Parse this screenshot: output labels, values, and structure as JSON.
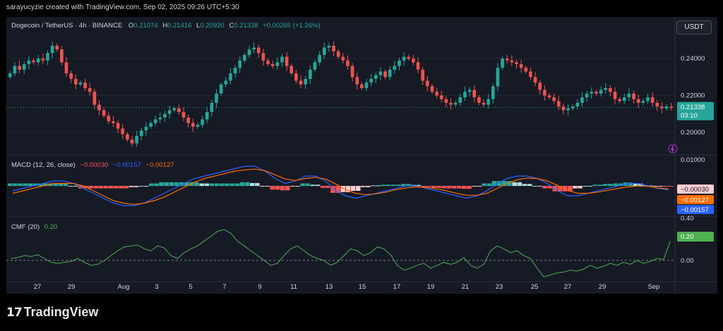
{
  "header": {
    "attribution": "sarayucyzie created with TradingView.com, Sep 02, 2025 09:26 UTC+5:30"
  },
  "legend": {
    "symbol": "Dogecoin / TetherUS · 4h · BINANCE",
    "o_label": "O",
    "o_value": "0.21074",
    "h_label": "H",
    "h_value": "0.21416",
    "l_label": "L",
    "l_value": "0.20920",
    "c_label": "C",
    "c_value": "0.21338",
    "change": "+0.00265 (+1.26%)"
  },
  "currency_button": "USDT",
  "price_axis": {
    "ticks": [
      "0.24000",
      "0.22000",
      "0.20000"
    ],
    "last_price": "0.21338",
    "countdown": "03:10"
  },
  "macd": {
    "label": "MACD (12, 26, close)",
    "v1": "−0.00030",
    "v2": "−0.00157",
    "v3": "−0.00127",
    "axis_top": "0.01000",
    "tag_hist": "−0.00030",
    "tag_signal": "−0.00127",
    "tag_macd": "−0.00157"
  },
  "cmf": {
    "label": "CMF (20)",
    "value": "0.20",
    "axis_top": "0.40",
    "axis_zero": "0.00",
    "tag": "0.20"
  },
  "time_axis": [
    "27",
    "29",
    "Aug",
    "3",
    "5",
    "7",
    "9",
    "11",
    "13",
    "15",
    "17",
    "19",
    "21",
    "23",
    "25",
    "27",
    "29",
    "Sep"
  ],
  "brand": "TradingView",
  "colors": {
    "up": "#26a69a",
    "down": "#ef5350",
    "macd_line": "#2962ff",
    "signal_line": "#ff6d00",
    "cmf_line": "#4caf50",
    "bg": "#161a25"
  },
  "chart_data": [
    {
      "type": "candlestick",
      "title": "Dogecoin / TetherUS · 4h · BINANCE",
      "x_ticks": [
        "27",
        "29",
        "Aug",
        "3",
        "5",
        "7",
        "9",
        "11",
        "13",
        "15",
        "17",
        "19",
        "21",
        "23",
        "25",
        "27",
        "29",
        "Sep"
      ],
      "ylim": [
        0.19,
        0.255
      ],
      "y_ticks": [
        0.24,
        0.22,
        0.2
      ],
      "close_path": [
        0.232,
        0.236,
        0.234,
        0.237,
        0.239,
        0.238,
        0.24,
        0.239,
        0.243,
        0.247,
        0.245,
        0.238,
        0.232,
        0.229,
        0.226,
        0.227,
        0.224,
        0.222,
        0.215,
        0.212,
        0.209,
        0.206,
        0.205,
        0.202,
        0.199,
        0.196,
        0.194,
        0.198,
        0.201,
        0.203,
        0.205,
        0.207,
        0.208,
        0.21,
        0.212,
        0.213,
        0.211,
        0.208,
        0.205,
        0.203,
        0.204,
        0.207,
        0.211,
        0.216,
        0.221,
        0.226,
        0.228,
        0.232,
        0.235,
        0.239,
        0.242,
        0.245,
        0.246,
        0.243,
        0.239,
        0.237,
        0.236,
        0.238,
        0.241,
        0.236,
        0.232,
        0.228,
        0.226,
        0.229,
        0.234,
        0.238,
        0.242,
        0.246,
        0.247,
        0.244,
        0.241,
        0.239,
        0.236,
        0.23,
        0.226,
        0.224,
        0.227,
        0.229,
        0.231,
        0.233,
        0.23,
        0.234,
        0.236,
        0.239,
        0.241,
        0.24,
        0.238,
        0.234,
        0.228,
        0.225,
        0.222,
        0.22,
        0.218,
        0.216,
        0.215,
        0.216,
        0.219,
        0.222,
        0.223,
        0.219,
        0.216,
        0.215,
        0.218,
        0.225,
        0.235,
        0.24,
        0.239,
        0.238,
        0.237,
        0.235,
        0.233,
        0.23,
        0.227,
        0.223,
        0.22,
        0.219,
        0.217,
        0.214,
        0.212,
        0.213,
        0.214,
        0.216,
        0.219,
        0.221,
        0.222,
        0.221,
        0.223,
        0.224,
        0.222,
        0.218,
        0.217,
        0.219,
        0.221,
        0.218,
        0.216,
        0.217,
        0.219,
        0.216,
        0.214,
        0.213,
        0.214,
        0.2134
      ]
    },
    {
      "type": "line",
      "title": "MACD (12, 26, close)",
      "series": [
        {
          "name": "MACD",
          "path": [
            -0.002,
            -0.001,
            0.0,
            0.001,
            0.002,
            0.002,
            0.001,
            -0.001,
            -0.003,
            -0.005,
            -0.007,
            -0.008,
            -0.008,
            -0.007,
            -0.005,
            -0.003,
            -0.001,
            0.001,
            0.003,
            0.004,
            0.005,
            0.006,
            0.007,
            0.008,
            0.008,
            0.006,
            0.003,
            0.001,
            0.002,
            0.004,
            0.004,
            0.002,
            -0.002,
            -0.004,
            -0.005,
            -0.004,
            -0.003,
            -0.002,
            -0.001,
            0.0,
            0.0,
            -0.001,
            -0.002,
            -0.003,
            -0.004,
            -0.005,
            -0.004,
            -0.002,
            0.001,
            0.003,
            0.004,
            0.004,
            0.003,
            0.001,
            -0.002,
            -0.004,
            -0.004,
            -0.003,
            -0.002,
            -0.001,
            0.0,
            0.001,
            0.001,
            0.0,
            -0.001,
            -0.00157
          ]
        },
        {
          "name": "Signal",
          "path": [
            -0.003,
            -0.002,
            -0.001,
            0.0,
            0.001,
            0.001,
            0.001,
            0.0,
            -0.002,
            -0.004,
            -0.006,
            -0.007,
            -0.0075,
            -0.007,
            -0.006,
            -0.0045,
            -0.0025,
            -0.0005,
            0.0015,
            0.003,
            0.004,
            0.005,
            0.006,
            0.0065,
            0.0068,
            0.0062,
            0.0045,
            0.0028,
            0.0022,
            0.003,
            0.0035,
            0.0028,
            0.0008,
            -0.0015,
            -0.003,
            -0.0035,
            -0.0032,
            -0.0025,
            -0.0015,
            -0.0008,
            -0.0004,
            -0.0006,
            -0.0012,
            -0.002,
            -0.003,
            -0.0038,
            -0.0038,
            -0.003,
            -0.001,
            0.001,
            0.0025,
            0.0032,
            0.003,
            0.002,
            0.0002,
            -0.0018,
            -0.003,
            -0.003,
            -0.0025,
            -0.0018,
            -0.001,
            -0.0004,
            0.0,
            -0.0002,
            -0.0008,
            -0.00127
          ]
        }
      ],
      "ylim": [
        -0.012,
        0.012
      ],
      "y_ticks": [
        0.01
      ]
    },
    {
      "type": "line",
      "title": "CMF (20)",
      "series": [
        {
          "name": "CMF",
          "path": [
            0.02,
            0.03,
            0.05,
            0.04,
            0.06,
            0.02,
            -0.02,
            -0.03,
            -0.02,
            -0.01,
            0.02,
            -0.02,
            -0.05,
            -0.04,
            0.0,
            0.05,
            0.1,
            0.14,
            0.15,
            0.16,
            0.12,
            0.1,
            0.15,
            0.13,
            0.05,
            0.02,
            0.08,
            0.12,
            0.15,
            0.2,
            0.25,
            0.3,
            0.32,
            0.28,
            0.2,
            0.15,
            0.1,
            0.05,
            0.0,
            -0.05,
            -0.03,
            0.05,
            0.12,
            0.15,
            0.1,
            0.05,
            0.02,
            0.0,
            -0.05,
            -0.02,
            0.05,
            0.12,
            0.1,
            0.05,
            0.08,
            0.14,
            0.12,
            0.06,
            -0.05,
            -0.1,
            -0.08,
            -0.05,
            -0.03,
            -0.08,
            -0.05,
            -0.02,
            -0.04,
            -0.02,
            0.03,
            -0.05,
            -0.08,
            -0.04,
            0.1,
            0.15,
            0.12,
            0.08,
            0.1,
            0.05,
            0.02,
            -0.08,
            -0.17,
            -0.15,
            -0.13,
            -0.12,
            -0.1,
            -0.11,
            -0.09,
            -0.05,
            -0.08,
            -0.06,
            -0.03,
            -0.05,
            -0.02,
            -0.04,
            0.0,
            -0.03,
            -0.01,
            0.02,
            0.01,
            0.2
          ]
        }
      ],
      "ylim": [
        -0.22,
        0.45
      ],
      "y_ticks": [
        0.4,
        0.0
      ]
    }
  ]
}
